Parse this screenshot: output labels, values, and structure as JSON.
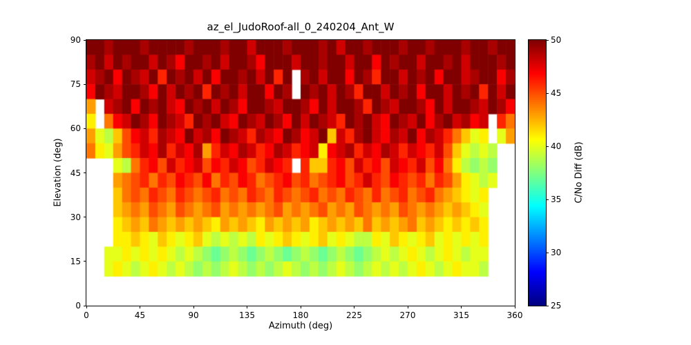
{
  "chart_data": {
    "type": "heatmap",
    "title": "az_el_JudoRoof-all_0_240204_Ant_W",
    "xlabel": "Azimuth (deg)",
    "ylabel": "Elevation (deg)",
    "xlim": [
      0,
      360
    ],
    "ylim": [
      0,
      90
    ],
    "x_ticks": [
      0,
      45,
      90,
      135,
      180,
      225,
      270,
      315,
      360
    ],
    "y_ticks": [
      0,
      15,
      30,
      45,
      60,
      75,
      90
    ],
    "grid": "off",
    "cell_size_deg": {
      "azimuth": 7.5,
      "elevation": 5
    },
    "grid_shape": {
      "cols": 48,
      "rows": 18
    },
    "row_order": "top-to-bottom (elevation 90 down to 0), null = no data (white)",
    "no_data_color": "#ffffff",
    "values": [
      [
        50,
        50,
        49,
        50,
        50,
        50,
        49,
        50,
        50,
        50,
        50,
        49,
        50,
        50,
        50,
        49,
        50,
        50,
        48,
        50,
        50,
        50,
        49,
        50,
        50,
        50,
        49,
        50,
        48,
        50,
        50,
        49,
        50,
        50,
        50,
        49,
        50,
        50,
        49,
        50,
        50,
        50,
        49,
        50,
        50,
        49,
        50,
        50
      ],
      [
        49,
        50,
        48,
        50,
        49,
        50,
        50,
        48,
        50,
        49,
        47,
        50,
        50,
        49,
        50,
        48,
        50,
        50,
        49,
        47,
        50,
        50,
        50,
        48,
        50,
        50,
        49,
        50,
        50,
        48,
        50,
        50,
        47,
        50,
        49,
        50,
        50,
        48,
        50,
        50,
        49,
        50,
        48,
        50,
        50,
        50,
        49,
        50
      ],
      [
        48,
        49,
        50,
        47,
        50,
        49,
        48,
        50,
        46,
        50,
        49,
        50,
        48,
        50,
        47,
        50,
        50,
        49,
        50,
        48,
        50,
        46,
        50,
        null,
        49,
        50,
        48,
        50,
        50,
        47,
        50,
        49,
        46,
        50,
        50,
        48,
        50,
        49,
        50,
        47,
        50,
        50,
        48,
        49,
        50,
        50,
        47,
        49
      ],
      [
        47,
        50,
        49,
        48,
        50,
        50,
        49,
        47,
        50,
        48,
        50,
        49,
        50,
        46,
        50,
        49,
        50,
        48,
        50,
        50,
        47,
        50,
        49,
        null,
        50,
        49,
        50,
        48,
        50,
        49,
        46,
        50,
        50,
        48,
        50,
        49,
        50,
        47,
        50,
        50,
        48,
        50,
        49,
        50,
        46,
        50,
        48,
        50
      ],
      [
        43,
        null,
        48,
        49,
        50,
        47,
        50,
        49,
        50,
        48,
        47,
        50,
        49,
        50,
        48,
        50,
        49,
        47,
        50,
        50,
        49,
        48,
        50,
        50,
        49,
        47,
        50,
        48,
        50,
        50,
        49,
        46,
        50,
        49,
        48,
        50,
        50,
        49,
        47,
        50,
        48,
        50,
        50,
        49,
        48,
        50,
        49,
        47
      ],
      [
        41,
        null,
        44,
        47,
        48,
        50,
        49,
        47,
        50,
        49,
        48,
        46,
        50,
        49,
        50,
        48,
        47,
        50,
        49,
        48,
        50,
        49,
        47,
        50,
        48,
        50,
        49,
        48,
        46,
        50,
        49,
        50,
        48,
        47,
        50,
        49,
        48,
        50,
        47,
        49,
        50,
        48,
        49,
        47,
        48,
        null,
        46,
        44
      ],
      [
        43,
        40,
        39,
        42,
        45,
        47,
        48,
        46,
        49,
        48,
        47,
        50,
        48,
        49,
        47,
        50,
        49,
        48,
        46,
        49,
        48,
        47,
        50,
        49,
        47,
        48,
        50,
        42,
        48,
        46,
        49,
        50,
        48,
        47,
        49,
        48,
        50,
        47,
        49,
        48,
        46,
        44,
        42,
        40,
        41,
        null,
        40,
        43
      ],
      [
        44,
        41,
        40,
        43,
        45,
        46,
        48,
        47,
        49,
        46,
        48,
        47,
        49,
        43,
        46,
        48,
        47,
        49,
        48,
        46,
        47,
        49,
        48,
        46,
        47,
        48,
        41,
        47,
        48,
        49,
        46,
        48,
        47,
        49,
        48,
        46,
        48,
        47,
        46,
        48,
        45,
        42,
        40,
        39,
        40,
        39,
        null,
        null
      ],
      [
        null,
        null,
        null,
        40,
        39,
        44,
        46,
        47,
        45,
        48,
        46,
        47,
        48,
        45,
        47,
        46,
        48,
        47,
        45,
        46,
        48,
        47,
        46,
        null,
        46,
        42,
        42,
        46,
        47,
        45,
        48,
        46,
        47,
        45,
        48,
        47,
        46,
        48,
        45,
        47,
        44,
        41,
        39,
        38,
        39,
        38,
        null,
        null
      ],
      [
        null,
        null,
        null,
        43,
        44,
        45,
        46,
        44,
        46,
        45,
        47,
        46,
        45,
        47,
        44,
        46,
        45,
        47,
        46,
        44,
        45,
        46,
        47,
        45,
        46,
        44,
        45,
        46,
        47,
        45,
        46,
        48,
        46,
        45,
        47,
        46,
        45,
        46,
        44,
        46,
        45,
        43,
        41,
        40,
        39,
        40,
        null,
        null
      ],
      [
        null,
        null,
        null,
        42,
        44,
        45,
        44,
        46,
        45,
        44,
        46,
        45,
        44,
        45,
        46,
        44,
        45,
        44,
        46,
        45,
        44,
        46,
        45,
        44,
        45,
        46,
        44,
        45,
        44,
        46,
        45,
        44,
        46,
        44,
        45,
        46,
        44,
        45,
        46,
        44,
        43,
        42,
        41,
        40,
        41,
        null,
        null,
        null
      ],
      [
        null,
        null,
        null,
        42,
        43,
        44,
        43,
        45,
        44,
        43,
        45,
        44,
        43,
        44,
        45,
        43,
        44,
        43,
        44,
        43,
        44,
        45,
        43,
        44,
        43,
        44,
        45,
        43,
        44,
        43,
        45,
        44,
        43,
        44,
        43,
        45,
        44,
        43,
        44,
        43,
        42,
        43,
        42,
        41,
        40,
        null,
        null,
        null
      ],
      [
        null,
        null,
        null,
        41,
        42,
        43,
        42,
        44,
        43,
        42,
        43,
        42,
        43,
        42,
        41,
        43,
        42,
        43,
        42,
        41,
        43,
        42,
        43,
        42,
        43,
        41,
        42,
        43,
        42,
        43,
        42,
        44,
        42,
        43,
        42,
        43,
        44,
        42,
        43,
        42,
        41,
        42,
        41,
        42,
        41,
        null,
        null,
        null
      ],
      [
        null,
        null,
        null,
        41,
        41,
        42,
        41,
        40,
        42,
        41,
        40,
        41,
        42,
        40,
        39,
        40,
        39,
        40,
        39,
        41,
        40,
        41,
        42,
        41,
        40,
        41,
        42,
        40,
        41,
        40,
        39,
        39,
        41,
        40,
        42,
        41,
        40,
        41,
        42,
        40,
        41,
        40,
        41,
        40,
        41,
        null,
        null,
        null
      ],
      [
        null,
        null,
        40,
        40,
        41,
        40,
        41,
        40,
        41,
        40,
        39,
        40,
        39,
        38,
        37,
        38,
        39,
        38,
        37,
        38,
        39,
        38,
        37,
        38,
        39,
        38,
        37,
        38,
        39,
        38,
        37,
        38,
        39,
        40,
        39,
        40,
        41,
        40,
        39,
        40,
        41,
        40,
        39,
        40,
        40,
        null,
        null,
        null
      ],
      [
        null,
        null,
        40,
        41,
        40,
        39,
        40,
        41,
        40,
        39,
        40,
        39,
        38,
        39,
        38,
        39,
        40,
        39,
        38,
        39,
        38,
        39,
        40,
        39,
        38,
        39,
        38,
        39,
        40,
        39,
        38,
        39,
        40,
        39,
        40,
        39,
        40,
        41,
        40,
        39,
        40,
        41,
        40,
        40,
        39,
        null,
        null,
        null
      ],
      [
        null,
        null,
        null,
        null,
        null,
        null,
        null,
        null,
        null,
        null,
        null,
        null,
        null,
        null,
        null,
        null,
        null,
        null,
        null,
        null,
        null,
        null,
        null,
        null,
        null,
        null,
        null,
        null,
        null,
        null,
        null,
        null,
        null,
        null,
        null,
        null,
        null,
        null,
        null,
        null,
        null,
        null,
        null,
        null,
        null,
        null,
        null,
        null
      ],
      [
        null,
        null,
        null,
        null,
        null,
        null,
        null,
        null,
        null,
        null,
        null,
        null,
        null,
        null,
        null,
        null,
        null,
        null,
        null,
        null,
        null,
        null,
        null,
        null,
        null,
        null,
        null,
        null,
        null,
        null,
        null,
        null,
        null,
        null,
        null,
        null,
        null,
        null,
        null,
        null,
        null,
        null,
        null,
        null,
        null,
        null,
        null,
        null
      ]
    ],
    "colorbar": {
      "label": "C/No Diff (dB)",
      "ticks": [
        25,
        30,
        35,
        40,
        45,
        50
      ],
      "vmin": 25,
      "vmax": 50,
      "colormap": "jet",
      "colormap_stops": [
        [
          0.0,
          "#000080"
        ],
        [
          0.125,
          "#0000ff"
        ],
        [
          0.375,
          "#00ffff"
        ],
        [
          0.625,
          "#ffff00"
        ],
        [
          0.875,
          "#ff0000"
        ],
        [
          1.0,
          "#800000"
        ]
      ],
      "position": "right"
    }
  }
}
